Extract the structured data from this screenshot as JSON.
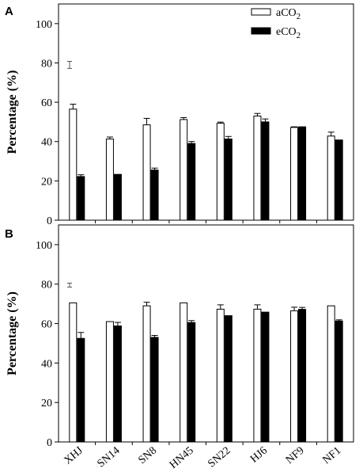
{
  "chart_data": [
    {
      "panel": "A",
      "type": "bar",
      "ylabel": "Percentage (%)",
      "ylim": [
        0,
        110
      ],
      "yticks": [
        "0",
        "20",
        "40",
        "60",
        "80",
        "100"
      ],
      "categories": [
        "XHJ",
        "SN14",
        "SN8",
        "HN45",
        "SN22",
        "HJ6",
        "NF9",
        "NF1"
      ],
      "series": [
        {
          "name": "aCO2",
          "color": "#ffffff",
          "values": [
            56.5,
            41.3,
            48.5,
            51.2,
            49.3,
            53.0,
            47.2,
            42.8
          ],
          "errors": [
            2.5,
            1.0,
            3.3,
            1.0,
            0.6,
            1.3,
            0.3,
            2.0
          ]
        },
        {
          "name": "eCO2",
          "color": "#000000",
          "values": [
            22.2,
            23.3,
            25.5,
            39.0,
            41.3,
            50.0,
            47.5,
            40.8
          ],
          "errors": [
            0.9,
            0.0,
            1.0,
            1.0,
            1.3,
            1.5,
            0.0,
            0.0
          ]
        }
      ],
      "scale_bar": {
        "value": 79,
        "error": 1.8
      },
      "legend": {
        "position": "top-right",
        "labels": [
          "aCO",
          "eCO"
        ],
        "subscript": "2"
      }
    },
    {
      "panel": "B",
      "type": "bar",
      "ylabel": "Percentage (%)",
      "ylim": [
        0,
        110
      ],
      "yticks": [
        "0",
        "20",
        "40",
        "60",
        "80",
        "100"
      ],
      "categories": [
        "XHJ",
        "SN14",
        "SN8",
        "HN45",
        "SN22",
        "HJ6",
        "NF9",
        "NF1"
      ],
      "series": [
        {
          "name": "aCO2",
          "color": "#ffffff",
          "values": [
            70.5,
            61.0,
            69.0,
            70.5,
            67.3,
            67.3,
            66.5,
            69.0
          ],
          "errors": [
            0.0,
            0.0,
            1.8,
            0.0,
            2.2,
            2.2,
            1.8,
            0.0
          ]
        },
        {
          "name": "eCO2",
          "color": "#000000",
          "values": [
            52.5,
            58.8,
            53.0,
            60.5,
            64.0,
            65.8,
            67.2,
            61.3
          ],
          "errors": [
            3.0,
            1.8,
            1.0,
            1.0,
            0.0,
            0.0,
            1.0,
            0.6
          ]
        }
      ],
      "scale_bar": {
        "value": 79.5,
        "error": 1.0
      }
    }
  ]
}
